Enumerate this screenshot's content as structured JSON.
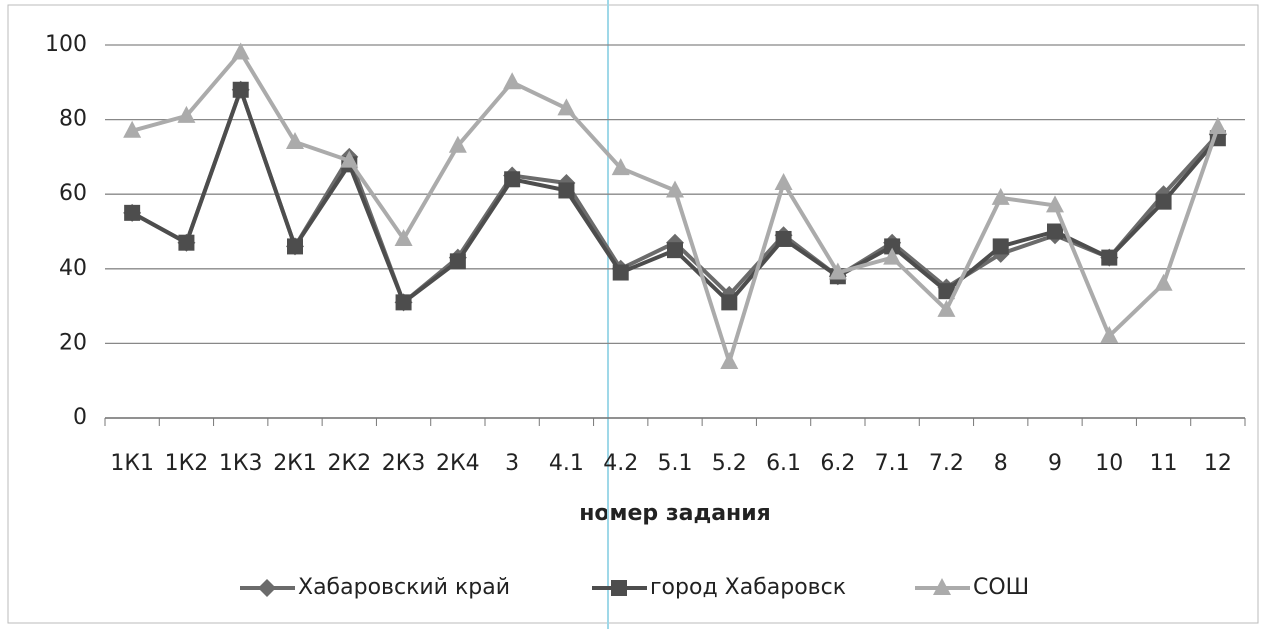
{
  "chart_data": {
    "type": "line",
    "xlabel": "номер задания",
    "categories": [
      "1К1",
      "1К2",
      "1К3",
      "2К1",
      "2К2",
      "2К3",
      "2К4",
      "3",
      "4.1",
      "4.2",
      "5.1",
      "5.2",
      "6.1",
      "6.2",
      "7.1",
      "7.2",
      "8",
      "9",
      "10",
      "11",
      "12"
    ],
    "series": [
      {
        "name": "Хабаровский край",
        "color": "#6b6b6b",
        "marker": "diamond",
        "values": [
          55,
          47,
          88,
          46,
          70,
          31,
          43,
          65,
          63,
          40,
          47,
          33,
          49,
          38,
          47,
          35,
          44,
          49,
          43,
          60,
          76
        ]
      },
      {
        "name": "город Хабаровск",
        "color": "#4d4d4d",
        "marker": "square",
        "values": [
          55,
          47,
          88,
          46,
          68,
          31,
          42,
          64,
          61,
          39,
          45,
          31,
          48,
          38,
          46,
          34,
          46,
          50,
          43,
          58,
          75
        ]
      },
      {
        "name": "СОШ",
        "color": "#ababab",
        "marker": "triangle",
        "values": [
          77,
          81,
          98,
          74,
          69,
          48,
          73,
          90,
          83,
          67,
          61,
          15,
          63,
          39,
          43,
          29,
          59,
          57,
          22,
          36,
          78
        ]
      }
    ],
    "ylim": [
      0,
      100
    ],
    "yticks": [
      0,
      20,
      40,
      60,
      80,
      100
    ],
    "grid": true,
    "legend": "bottom"
  }
}
